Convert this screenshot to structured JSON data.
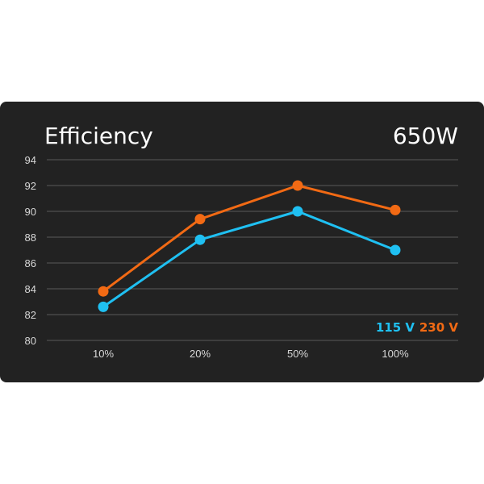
{
  "chart_data": {
    "type": "line",
    "title": "Efficiency",
    "subtitle": "650W",
    "categories": [
      "10%",
      "20%",
      "50%",
      "100%"
    ],
    "ylim": [
      80,
      94
    ],
    "yticks": [
      80,
      82,
      84,
      86,
      88,
      90,
      92,
      94
    ],
    "grid": true,
    "legend_position": "bottom-right",
    "series": [
      {
        "name": "115 V",
        "color": "#1fc0f2",
        "values": [
          82.6,
          87.8,
          90.0,
          87.0
        ]
      },
      {
        "name": "230 V",
        "color": "#f26a14",
        "values": [
          83.8,
          89.4,
          92.0,
          90.1
        ]
      }
    ]
  }
}
